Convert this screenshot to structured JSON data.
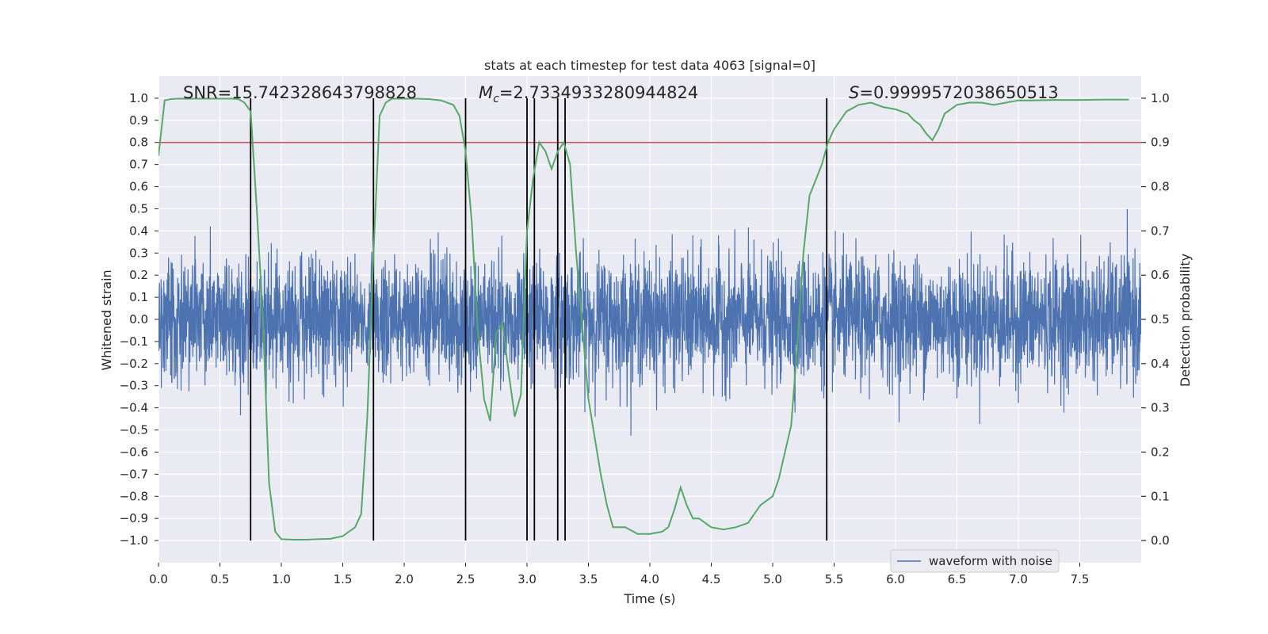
{
  "chart_data": {
    "type": "line",
    "title": "stats at each timestep for test data 4063 [signal=0]",
    "xlabel": "Time (s)",
    "ylabel": "Whitened strain",
    "y2label": "Detection probability",
    "xlim": [
      0.0,
      8.0
    ],
    "ylim": [
      -1.1,
      1.1
    ],
    "y2lim": [
      -0.05,
      1.05
    ],
    "xticks": [
      0.0,
      0.5,
      1.0,
      1.5,
      2.0,
      2.5,
      3.0,
      3.5,
      4.0,
      4.5,
      5.0,
      5.5,
      6.0,
      6.5,
      7.0,
      7.5
    ],
    "xtick_labels": [
      "0.0",
      "0.5",
      "1.0",
      "1.5",
      "2.0",
      "2.5",
      "3.0",
      "3.5",
      "4.0",
      "4.5",
      "5.0",
      "5.5",
      "6.0",
      "6.5",
      "7.0",
      "7.5"
    ],
    "yticks": [
      -1.0,
      -0.9,
      -0.8,
      -0.7,
      -0.6,
      -0.5,
      -0.4,
      -0.3,
      -0.2,
      -0.1,
      0.0,
      0.1,
      0.2,
      0.3,
      0.4,
      0.5,
      0.6,
      0.7,
      0.8,
      0.9,
      1.0
    ],
    "ytick_labels": [
      "−1.0",
      "−0.9",
      "−0.8",
      "−0.7",
      "−0.6",
      "−0.5",
      "−0.4",
      "−0.3",
      "−0.2",
      "−0.1",
      "0.0",
      "0.1",
      "0.2",
      "0.3",
      "0.4",
      "0.5",
      "0.6",
      "0.7",
      "0.8",
      "0.9",
      "1.0"
    ],
    "y2ticks": [
      0.0,
      0.1,
      0.2,
      0.3,
      0.4,
      0.5,
      0.6,
      0.7,
      0.8,
      0.9,
      1.0
    ],
    "y2tick_labels": [
      "0.0",
      "0.1",
      "0.2",
      "0.3",
      "0.4",
      "0.5",
      "0.6",
      "0.7",
      "0.8",
      "0.9",
      "1.0"
    ],
    "grid": true,
    "legend": {
      "position": "lower-right",
      "entries": [
        "waveform with noise"
      ]
    },
    "annotations": {
      "snr": "SNR=15.742328643798828",
      "mc_symbol": "M",
      "mc_sub": "c",
      "mc_value": "=2.7334933280944824",
      "s_symbol": "S",
      "s_value": "=0.9999572038650513"
    },
    "threshold": {
      "axis": "y2",
      "value": 0.9
    },
    "detection_times": [
      0.75,
      1.75,
      2.5,
      3.0,
      3.06,
      3.25,
      3.31,
      5.44
    ],
    "waveform": {
      "name": "waveform with noise",
      "duration": 8.0,
      "sample_rate": 512,
      "noise_sigma": 0.14,
      "y_range": [
        -1.0,
        1.0
      ]
    },
    "detection_probability": {
      "name": "detection probability",
      "t": [
        0.0,
        0.05,
        0.1,
        0.15,
        0.2,
        0.3,
        0.4,
        0.5,
        0.6,
        0.65,
        0.7,
        0.75,
        0.8,
        0.85,
        0.9,
        0.95,
        1.0,
        1.1,
        1.2,
        1.3,
        1.4,
        1.5,
        1.6,
        1.65,
        1.7,
        1.75,
        1.8,
        1.85,
        1.9,
        2.0,
        2.1,
        2.2,
        2.3,
        2.4,
        2.45,
        2.5,
        2.55,
        2.6,
        2.65,
        2.7,
        2.75,
        2.8,
        2.85,
        2.9,
        2.95,
        3.0,
        3.05,
        3.1,
        3.15,
        3.2,
        3.25,
        3.3,
        3.35,
        3.4,
        3.5,
        3.6,
        3.65,
        3.7,
        3.8,
        3.9,
        4.0,
        4.1,
        4.15,
        4.2,
        4.25,
        4.3,
        4.35,
        4.4,
        4.5,
        4.6,
        4.7,
        4.8,
        4.9,
        5.0,
        5.05,
        5.1,
        5.15,
        5.2,
        5.25,
        5.3,
        5.4,
        5.45,
        5.5,
        5.6,
        5.7,
        5.8,
        5.9,
        6.0,
        6.05,
        6.1,
        6.15,
        6.2,
        6.25,
        6.3,
        6.35,
        6.4,
        6.5,
        6.6,
        6.7,
        6.8,
        6.9,
        7.0,
        7.1,
        7.3,
        7.5,
        7.7,
        7.9
      ],
      "p": [
        0.87,
        0.995,
        0.998,
        0.999,
        0.999,
        0.999,
        0.999,
        0.999,
        0.999,
        0.998,
        0.99,
        0.97,
        0.75,
        0.5,
        0.13,
        0.02,
        0.003,
        0.002,
        0.002,
        0.003,
        0.004,
        0.01,
        0.03,
        0.06,
        0.28,
        0.65,
        0.96,
        0.99,
        0.999,
        0.999,
        0.999,
        0.998,
        0.995,
        0.985,
        0.96,
        0.88,
        0.72,
        0.47,
        0.32,
        0.27,
        0.47,
        0.49,
        0.38,
        0.28,
        0.33,
        0.7,
        0.82,
        0.9,
        0.88,
        0.84,
        0.88,
        0.9,
        0.85,
        0.65,
        0.32,
        0.15,
        0.08,
        0.03,
        0.03,
        0.015,
        0.015,
        0.02,
        0.03,
        0.07,
        0.12,
        0.08,
        0.05,
        0.05,
        0.03,
        0.025,
        0.03,
        0.04,
        0.08,
        0.1,
        0.14,
        0.2,
        0.26,
        0.44,
        0.65,
        0.78,
        0.85,
        0.9,
        0.93,
        0.97,
        0.985,
        0.99,
        0.98,
        0.975,
        0.97,
        0.965,
        0.95,
        0.94,
        0.92,
        0.905,
        0.93,
        0.965,
        0.985,
        0.99,
        0.99,
        0.985,
        0.99,
        0.995,
        0.995,
        0.996,
        0.996,
        0.997,
        0.997
      ]
    }
  }
}
